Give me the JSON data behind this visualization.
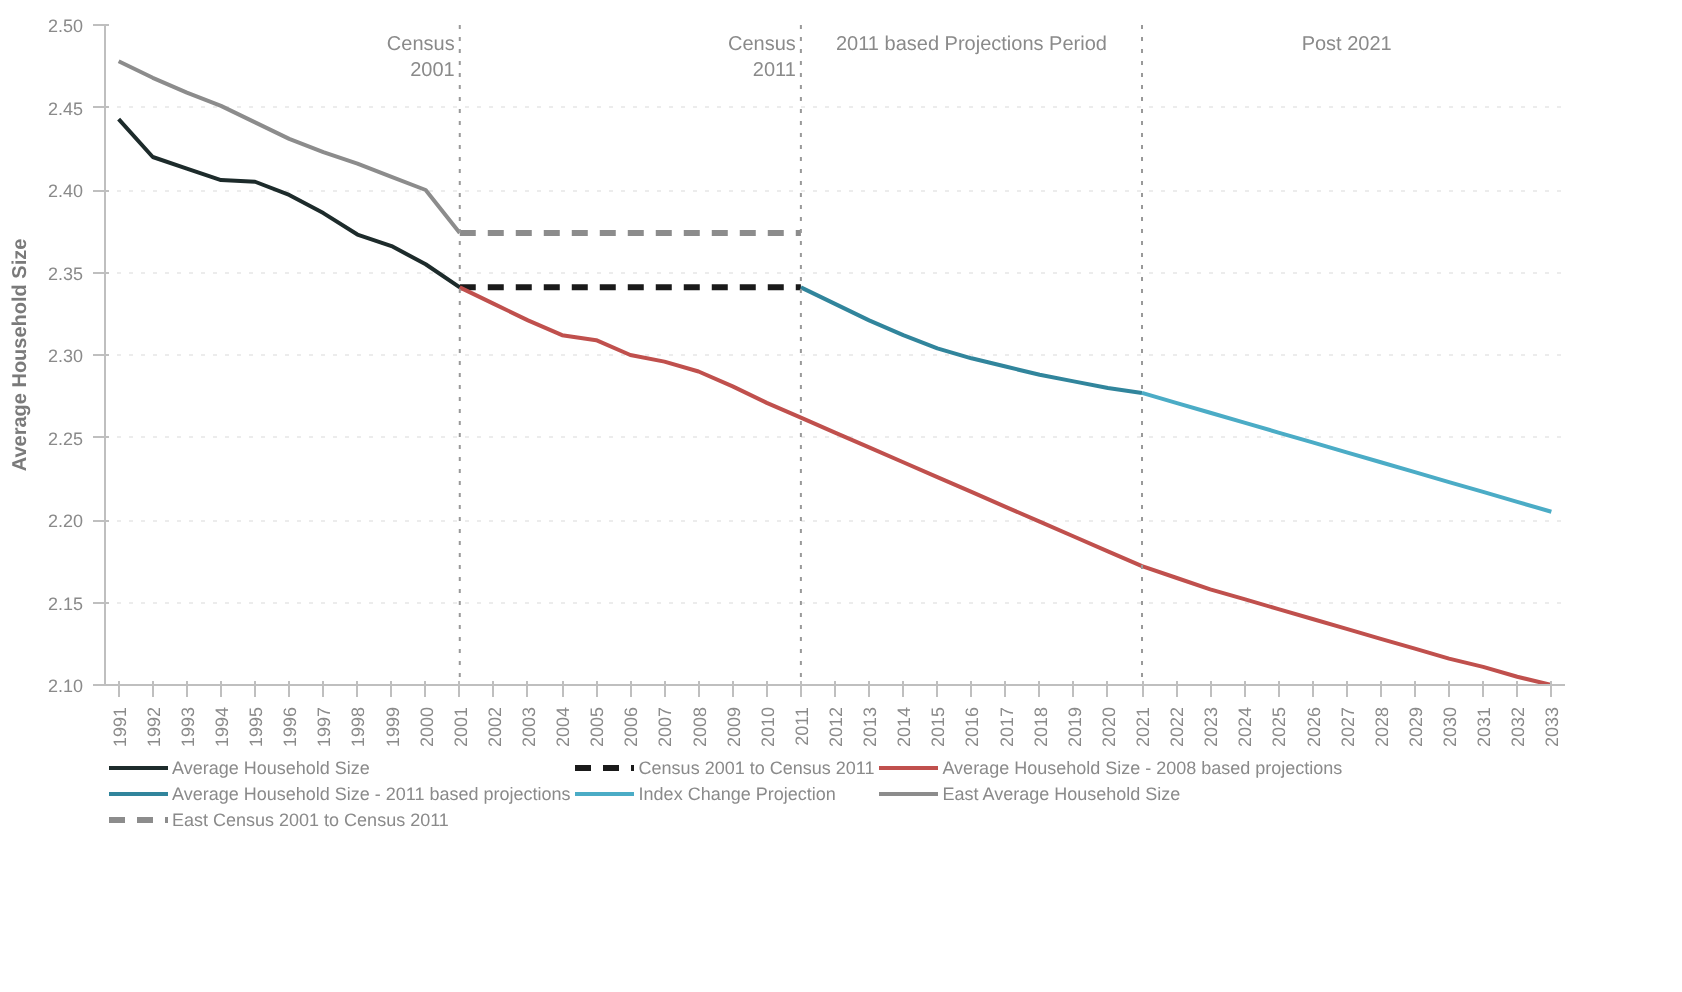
{
  "chart_data": {
    "type": "line",
    "ylabel": "Average Household Size",
    "categories": [
      "1991",
      "1992",
      "1993",
      "1994",
      "1995",
      "1996",
      "1997",
      "1998",
      "1999",
      "2000",
      "2001",
      "2002",
      "2003",
      "2004",
      "2005",
      "2006",
      "2007",
      "2008",
      "2009",
      "2010",
      "2011",
      "2012",
      "2013",
      "2014",
      "2015",
      "2016",
      "2017",
      "2018",
      "2019",
      "2020",
      "2021",
      "2022",
      "2023",
      "2024",
      "2025",
      "2026",
      "2027",
      "2028",
      "2029",
      "2030",
      "2031",
      "2032",
      "2033"
    ],
    "ylim": [
      2.1,
      2.5
    ],
    "yticks": [
      {
        "value": 2.1,
        "label": "2.10"
      },
      {
        "value": 2.15,
        "label": "2.15"
      },
      {
        "value": 2.2,
        "label": "2.20"
      },
      {
        "value": 2.25,
        "label": "2.25"
      },
      {
        "value": 2.3,
        "label": "2.30"
      },
      {
        "value": 2.35,
        "label": "2.35"
      },
      {
        "value": 2.4,
        "label": "2.40"
      },
      {
        "value": 2.45,
        "label": "2.45"
      },
      {
        "value": 2.5,
        "label": "2.50"
      }
    ],
    "grid": "y",
    "legend": "bottom",
    "line_style": "solid",
    "series": [
      {
        "name": "Average Household Size",
        "color": "#1d2b2b",
        "values": [
          2.443,
          2.42,
          2.413,
          2.406,
          2.405,
          2.397,
          2.386,
          2.373,
          2.366,
          2.355,
          2.341,
          null,
          null,
          null,
          null,
          null,
          null,
          null,
          null,
          null,
          null,
          null,
          null,
          null,
          null,
          null,
          null,
          null,
          null,
          null,
          null,
          null,
          null,
          null,
          null,
          null,
          null,
          null,
          null,
          null,
          null,
          null,
          null
        ]
      },
      {
        "name": "Census 2001 to Census 2011",
        "color": "#1a1a1a",
        "line_style": "dashed",
        "values": [
          null,
          null,
          null,
          null,
          null,
          null,
          null,
          null,
          null,
          null,
          2.341,
          2.341,
          2.341,
          2.341,
          2.341,
          2.341,
          2.341,
          2.341,
          2.341,
          2.341,
          2.341,
          null,
          null,
          null,
          null,
          null,
          null,
          null,
          null,
          null,
          null,
          null,
          null,
          null,
          null,
          null,
          null,
          null,
          null,
          null,
          null,
          null,
          null
        ]
      },
      {
        "name": "Average Household Size - 2008 based projections",
        "color": "#c0504d",
        "values": [
          null,
          null,
          null,
          null,
          null,
          null,
          null,
          null,
          null,
          null,
          2.341,
          2.331,
          2.321,
          2.312,
          2.309,
          2.3,
          2.296,
          2.29,
          2.281,
          2.271,
          2.262,
          2.253,
          2.244,
          2.235,
          2.226,
          2.217,
          2.208,
          2.199,
          2.19,
          2.181,
          2.172,
          2.165,
          2.158,
          2.152,
          2.146,
          2.14,
          2.134,
          2.128,
          2.122,
          2.116,
          2.111,
          2.105,
          2.1
        ]
      },
      {
        "name": "Average Household Size - 2011 based projections",
        "color": "#31859c",
        "values": [
          null,
          null,
          null,
          null,
          null,
          null,
          null,
          null,
          null,
          null,
          null,
          null,
          null,
          null,
          null,
          null,
          null,
          null,
          null,
          null,
          2.341,
          2.331,
          2.321,
          2.312,
          2.304,
          2.298,
          2.293,
          2.288,
          2.284,
          2.28,
          2.277,
          null,
          null,
          null,
          null,
          null,
          null,
          null,
          null,
          null,
          null,
          null,
          null
        ]
      },
      {
        "name": "Index Change Projection",
        "color": "#4bacc6",
        "values": [
          null,
          null,
          null,
          null,
          null,
          null,
          null,
          null,
          null,
          null,
          null,
          null,
          null,
          null,
          null,
          null,
          null,
          null,
          null,
          null,
          null,
          null,
          null,
          null,
          null,
          null,
          null,
          null,
          null,
          null,
          2.277,
          2.271,
          2.265,
          2.259,
          2.253,
          2.247,
          2.241,
          2.235,
          2.229,
          2.223,
          2.217,
          2.211,
          2.205
        ]
      },
      {
        "name": "East Average Household Size",
        "color": "#8c8c8c",
        "values": [
          2.478,
          2.468,
          2.459,
          2.451,
          2.441,
          2.431,
          2.423,
          2.416,
          2.408,
          2.4,
          2.374,
          null,
          null,
          null,
          null,
          null,
          null,
          null,
          null,
          null,
          null,
          null,
          null,
          null,
          null,
          null,
          null,
          null,
          null,
          null,
          null,
          null,
          null,
          null,
          null,
          null,
          null,
          null,
          null,
          null,
          null,
          null,
          null
        ]
      },
      {
        "name": "East Census 2001 to Census 2011",
        "color": "#8c8c8c",
        "line_style": "dashed",
        "values": [
          null,
          null,
          null,
          null,
          null,
          null,
          null,
          null,
          null,
          null,
          2.374,
          2.374,
          2.374,
          2.374,
          2.374,
          2.374,
          2.374,
          2.374,
          2.374,
          2.374,
          2.374,
          null,
          null,
          null,
          null,
          null,
          null,
          null,
          null,
          null,
          null,
          null,
          null,
          null,
          null,
          null,
          null,
          null,
          null,
          null,
          null,
          null,
          null
        ]
      }
    ],
    "ref_lines": [
      {
        "axis": "x",
        "value": "2001",
        "label": "Census 2001",
        "color": "#999999",
        "line_style": "dotted"
      },
      {
        "axis": "x",
        "value": "2011",
        "label": "Census 2011",
        "color": "#999999",
        "line_style": "dotted"
      },
      {
        "axis": "x",
        "value": "2021",
        "label": null,
        "color": "#999999",
        "line_style": "dotted"
      }
    ],
    "annotations": [
      "2011 based Projections Period",
      "Post 2021"
    ]
  }
}
